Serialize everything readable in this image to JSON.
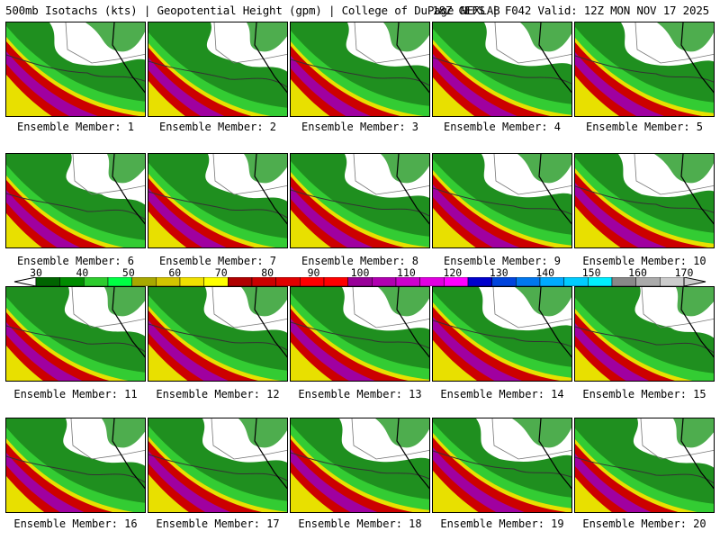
{
  "header": {
    "left": "500mb Isotachs (kts) | Geopotential Height (gpm) | College of DuPage NEXLAB",
    "right": "18Z GEFS | F042 Valid: 12Z MON NOV 17 2025"
  },
  "members": [
    {
      "label": "Ensemble Member: 1"
    },
    {
      "label": "Ensemble Member: 2"
    },
    {
      "label": "Ensemble Member: 3"
    },
    {
      "label": "Ensemble Member: 4"
    },
    {
      "label": "Ensemble Member: 5"
    },
    {
      "label": "Ensemble Member: 6"
    },
    {
      "label": "Ensemble Member: 7"
    },
    {
      "label": "Ensemble Member: 8"
    },
    {
      "label": "Ensemble Member: 9"
    },
    {
      "label": "Ensemble Member: 10"
    },
    {
      "label": "Ensemble Member: 11"
    },
    {
      "label": "Ensemble Member: 12"
    },
    {
      "label": "Ensemble Member: 13"
    },
    {
      "label": "Ensemble Member: 14"
    },
    {
      "label": "Ensemble Member: 15"
    },
    {
      "label": "Ensemble Member: 16"
    },
    {
      "label": "Ensemble Member: 17"
    },
    {
      "label": "Ensemble Member: 18"
    },
    {
      "label": "Ensemble Member: 19"
    },
    {
      "label": "Ensemble Member: 20"
    }
  ],
  "colorbar": {
    "ticks": [
      "30",
      "40",
      "50",
      "60",
      "70",
      "80",
      "90",
      "100",
      "110",
      "120",
      "130",
      "140",
      "150",
      "160",
      "170"
    ],
    "colors": [
      "#006400",
      "#008c00",
      "#2ecc2e",
      "#00ff44",
      "#a8a800",
      "#d4c400",
      "#f0e000",
      "#ffff00",
      "#b00000",
      "#cc0000",
      "#e00000",
      "#ff0000",
      "#ff0000",
      "#990099",
      "#b000b0",
      "#cc00cc",
      "#e000e0",
      "#ff00ff",
      "#0000cc",
      "#0044dd",
      "#0077ee",
      "#00aaff",
      "#00ccff",
      "#00eeff",
      "#888888",
      "#aaaaaa",
      "#cccccc"
    ]
  }
}
